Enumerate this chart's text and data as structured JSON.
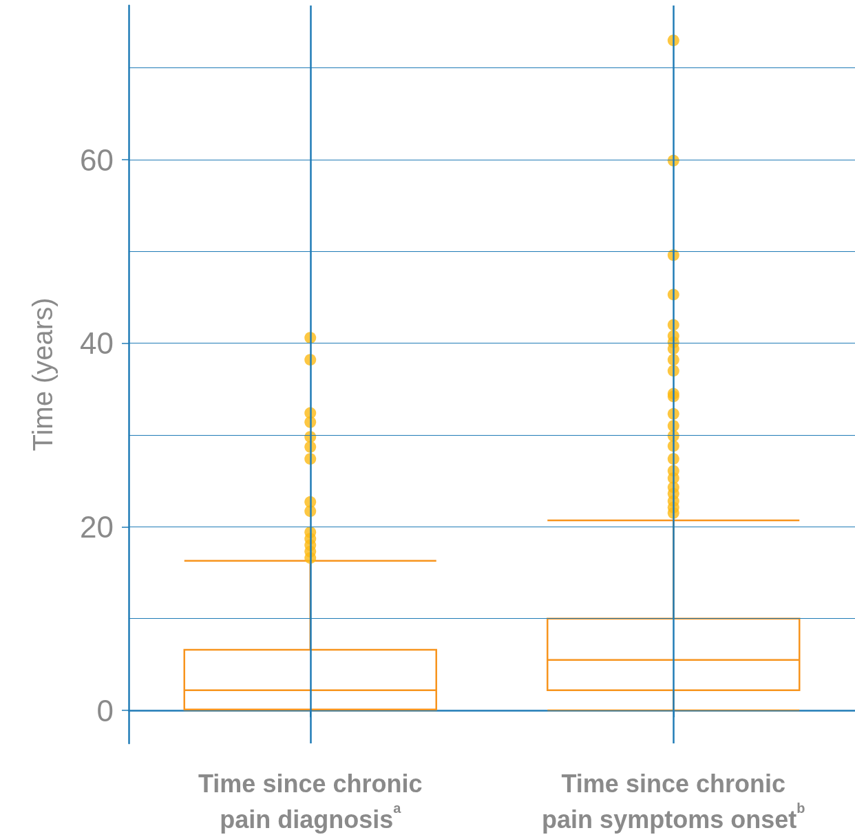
{
  "chart_data": {
    "type": "box",
    "ylabel": "Time (years)",
    "categories": [
      "Time since chronic pain diagnosis$^{a}$",
      "Time since chronic pain symptoms onset$^{b}$"
    ],
    "series": [
      {
        "color": "#f7941d",
        "boxes": [
          {
            "low": 0,
            "q1": 0.1,
            "median": 2.2,
            "q3": 6.6,
            "high": 16.3
          },
          {
            "low": 0,
            "q1": 2.2,
            "median": 5.5,
            "q3": 10,
            "high": 20.7
          }
        ]
      },
      {
        "type": "scatter",
        "color": "#fdb913",
        "x": [
          "Time since chronic pain diagnosis$^{a}$",
          "Time since chronic pain diagnosis$^{a}$",
          "Time since chronic pain diagnosis$^{a}$",
          "Time since chronic pain diagnosis$^{a}$",
          "Time since chronic pain diagnosis$^{a}$",
          "Time since chronic pain diagnosis$^{a}$",
          "Time since chronic pain diagnosis$^{a}$",
          "Time since chronic pain diagnosis$^{a}$",
          "Time since chronic pain diagnosis$^{a}$",
          "Time since chronic pain diagnosis$^{a}$",
          "Time since chronic pain diagnosis$^{a}$",
          "Time since chronic pain diagnosis$^{a}$",
          "Time since chronic pain diagnosis$^{a}$",
          "Time since chronic pain diagnosis$^{a}$",
          "Time since chronic pain symptoms onset$^{b}$",
          "Time since chronic pain symptoms onset$^{b}$",
          "Time since chronic pain symptoms onset$^{b}$",
          "Time since chronic pain symptoms onset$^{b}$",
          "Time since chronic pain symptoms onset$^{b}$",
          "Time since chronic pain symptoms onset$^{b}$",
          "Time since chronic pain symptoms onset$^{b}$",
          "Time since chronic pain symptoms onset$^{b}$",
          "Time since chronic pain symptoms onset$^{b}$",
          "Time since chronic pain symptoms onset$^{b}$",
          "Time since chronic pain symptoms onset$^{b}$",
          "Time since chronic pain symptoms onset$^{b}$",
          "Time since chronic pain symptoms onset$^{b}$",
          "Time since chronic pain symptoms onset$^{b}$",
          "Time since chronic pain symptoms onset$^{b}$",
          "Time since chronic pain symptoms onset$^{b}$",
          "Time since chronic pain symptoms onset$^{b}$",
          "Time since chronic pain symptoms onset$^{b}$",
          "Time since chronic pain symptoms onset$^{b}$",
          "Time since chronic pain symptoms onset$^{b}$",
          "Time since chronic pain symptoms onset$^{b}$",
          "Time since chronic pain symptoms onset$^{b}$",
          "Time since chronic pain symptoms onset$^{b}$",
          "Time since chronic pain symptoms onset$^{b}$"
        ],
        "values": [
          40.6,
          38.2,
          32.4,
          31.4,
          29.8,
          28.7,
          27.4,
          22.7,
          21.7,
          19.4,
          18.7,
          18.0,
          17.3,
          16.6,
          73.0,
          59.9,
          49.6,
          45.3,
          42.0,
          40.8,
          40.1,
          39.4,
          38.2,
          37.0,
          34.5,
          34.2,
          32.3,
          31.0,
          29.9,
          28.8,
          27.4,
          26.1,
          25.3,
          24.3,
          23.6,
          22.8,
          22.1,
          21.5
        ]
      }
    ],
    "ylim": [
      -3.6,
      76.8
    ],
    "yticks": [
      0,
      {
        "value": 10,
        "label": null
      },
      20,
      {
        "value": 30,
        "label": null
      },
      40,
      {
        "value": 50,
        "label": null
      },
      60,
      {
        "value": 70,
        "label": null
      }
    ],
    "grid": true
  }
}
